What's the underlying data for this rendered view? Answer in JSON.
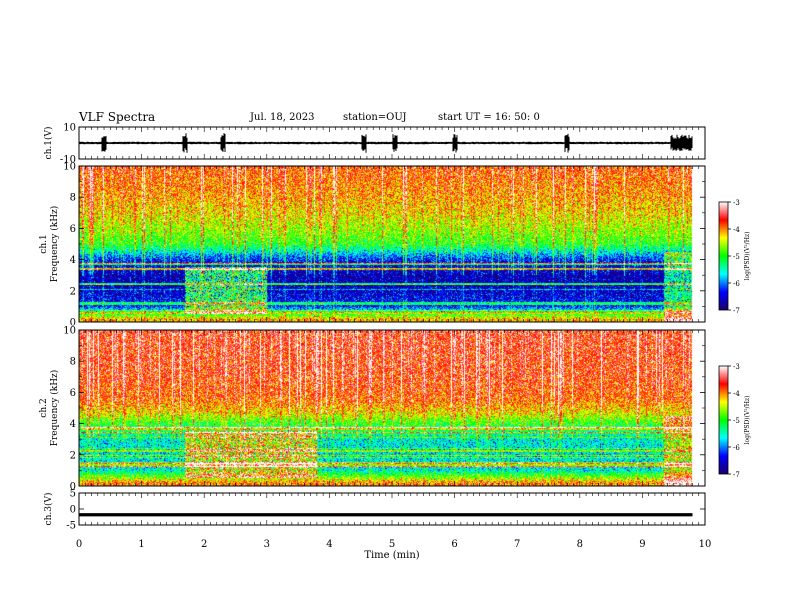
{
  "header": {
    "title": "VLF Spectra",
    "date": "Jul. 18, 2023",
    "station": "station=OUJ",
    "start_ut": "start  UT =  16: 50: 0"
  },
  "chart_data": [
    {
      "type": "line",
      "panel": "ch1-waveform",
      "ylabel": "ch.1(V)",
      "ylim": [
        -10,
        10
      ],
      "yticks": [
        "10",
        "-10"
      ],
      "x_unit": "min",
      "xlim": [
        0,
        10
      ],
      "signal_range_approx": [
        -2,
        2
      ],
      "trace_end_min": 9.8,
      "bursts_min": [
        0.4,
        1.7,
        2.3,
        4.55,
        5.05,
        6.0,
        7.8,
        9.55
      ]
    },
    {
      "type": "heatmap",
      "panel": "ch1-spectrogram",
      "ylabel": "ch.1\nFrequency  (kHz)",
      "xlim": [
        0,
        10
      ],
      "ylim": [
        0,
        10
      ],
      "yticks": [
        "0",
        "2",
        "4",
        "6",
        "8",
        "10"
      ],
      "colorbar": {
        "label": "log(PSD)(V²/Hz)",
        "range": [
          -7,
          -3
        ],
        "ticks": [
          "-3",
          "-4",
          "-5",
          "-6",
          "-7"
        ],
        "colormap": [
          "#1a006b",
          "#0000ff",
          "#00ffff",
          "#00ff00",
          "#ffff00",
          "#ff0000",
          "#ffffff"
        ]
      },
      "profile_khz_by_level": [
        [
          0.2,
          -4.2
        ],
        [
          1.0,
          -6.3
        ],
        [
          2.0,
          -6.6
        ],
        [
          3.0,
          -6.7
        ],
        [
          4.0,
          -6.3
        ],
        [
          5.0,
          -5.0
        ],
        [
          6.0,
          -4.6
        ],
        [
          7.0,
          -4.3
        ],
        [
          8.0,
          -4.1
        ],
        [
          10.0,
          -3.8
        ]
      ],
      "elevated_interval_min": [
        1.7,
        3.0
      ],
      "elevated_band_khz": [
        0.5,
        3.5
      ]
    },
    {
      "type": "heatmap",
      "panel": "ch2-spectrogram",
      "ylabel": "ch.2\nFrequency  (kHz)",
      "xlim": [
        0,
        10
      ],
      "ylim": [
        0,
        10
      ],
      "yticks": [
        "0",
        "2",
        "4",
        "6",
        "8",
        "10"
      ],
      "colorbar": {
        "label": "log(PSD)(V²/Hz)",
        "range": [
          -7,
          -3
        ],
        "ticks": [
          "-3",
          "-4",
          "-5",
          "-6",
          "-7"
        ],
        "colormap": [
          "#1a006b",
          "#0000ff",
          "#00ffff",
          "#00ff00",
          "#ffff00",
          "#ff0000",
          "#ffffff"
        ]
      },
      "profile_khz_by_level": [
        [
          0.2,
          -4.0
        ],
        [
          1.0,
          -5.6
        ],
        [
          2.0,
          -5.7
        ],
        [
          3.0,
          -5.6
        ],
        [
          4.0,
          -5.0
        ],
        [
          4.6,
          -4.4
        ],
        [
          5.5,
          -3.9
        ],
        [
          7.0,
          -3.7
        ],
        [
          10.0,
          -3.6
        ]
      ],
      "elevated_interval_min": [
        1.7,
        3.8
      ],
      "elevated_band_khz": [
        0.5,
        3.5
      ]
    },
    {
      "type": "line",
      "panel": "ch3-waveform",
      "ylabel": "ch.3(V)",
      "ylim": [
        -5,
        5
      ],
      "yticks": [
        "5",
        "0",
        "-5"
      ],
      "xlim": [
        0,
        10
      ],
      "level_v": -1.8,
      "trace_end_min": 9.8
    }
  ],
  "xaxis": {
    "label": "Time  (min)",
    "ticks": [
      "0",
      "1",
      "2",
      "3",
      "4",
      "5",
      "6",
      "7",
      "8",
      "9",
      "10"
    ]
  }
}
